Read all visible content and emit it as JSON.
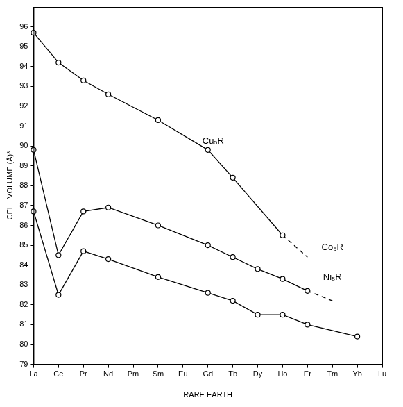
{
  "chart_data": {
    "type": "line",
    "x_label": "RARE EARTH",
    "y_label": "CELL VOLUME (Å)³",
    "categories": [
      "La",
      "Ce",
      "Pr",
      "Nd",
      "Pm",
      "Sm",
      "Eu",
      "Gd",
      "Tb",
      "Dy",
      "Ho",
      "Er",
      "Tm",
      "Yb",
      "Lu"
    ],
    "ylim": [
      79,
      97
    ],
    "yticks": [
      79,
      80,
      81,
      82,
      83,
      84,
      85,
      86,
      87,
      88,
      89,
      90,
      91,
      92,
      93,
      94,
      95,
      96
    ],
    "grid": false,
    "series": [
      {
        "name": "Cu₅R",
        "color": "#000000",
        "marker": "circle",
        "line_style": "solid",
        "values": [
          95.7,
          94.2,
          93.3,
          92.6,
          null,
          91.3,
          null,
          89.8,
          88.4,
          null,
          85.5,
          null,
          null,
          null,
          null
        ],
        "extrapolated_values": [
          null,
          null,
          null,
          null,
          null,
          null,
          null,
          null,
          null,
          null,
          85.5,
          84.4,
          null,
          null,
          null
        ]
      },
      {
        "name": "Co₅R",
        "color": "#000000",
        "marker": "circle",
        "line_style": "solid",
        "values": [
          89.8,
          84.5,
          86.7,
          86.9,
          null,
          86.0,
          null,
          85.0,
          84.4,
          83.8,
          83.3,
          82.7,
          null,
          null,
          null
        ],
        "extrapolated_values": [
          null,
          null,
          null,
          null,
          null,
          null,
          null,
          null,
          null,
          null,
          null,
          82.7,
          82.2,
          null,
          null
        ]
      },
      {
        "name": "Ni₅R",
        "color": "#000000",
        "marker": "circle",
        "line_style": "solid",
        "values": [
          86.7,
          82.5,
          84.7,
          84.3,
          null,
          83.4,
          null,
          82.6,
          82.2,
          81.5,
          81.5,
          81.0,
          null,
          80.4,
          null
        ]
      }
    ]
  }
}
